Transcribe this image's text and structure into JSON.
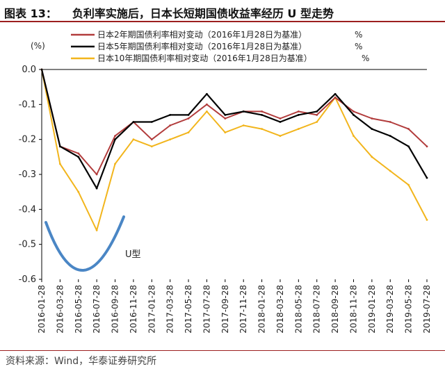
{
  "header": {
    "figure_label": "图表 13：",
    "title": "负利率实施后，日本长短期国债收益率经历 U 型走势"
  },
  "source": "资料来源：Wind，华泰证券研究所",
  "chart_data": {
    "type": "line",
    "unit_label": "(%)",
    "x": [
      "2016-01-28",
      "2016-03-28",
      "2016-05-28",
      "2016-07-28",
      "2016-09-28",
      "2016-11-28",
      "2017-01-28",
      "2017-03-28",
      "2017-05-28",
      "2017-07-28",
      "2017-09-28",
      "2017-11-28",
      "2018-01-28",
      "2018-03-28",
      "2018-05-28",
      "2018-07-28",
      "2018-09-28",
      "2018-11-28",
      "2019-01-28",
      "2019-03-28",
      "2019-05-28",
      "2019-07-28"
    ],
    "ylim": [
      -0.6,
      0.0
    ],
    "yticks": [
      0.0,
      -0.1,
      -0.2,
      -0.3,
      -0.4,
      -0.5,
      -0.6
    ],
    "ytick_labels": [
      "0.0",
      "-0.1",
      "-0.2",
      "-0.3",
      "-0.4",
      "-0.5",
      "-0.6"
    ],
    "series": [
      {
        "name": "日本2年期国债利率相对变动（2016年1月28日为基准）",
        "color": "#b23c3c",
        "values": [
          0.0,
          -0.22,
          -0.24,
          -0.3,
          -0.19,
          -0.15,
          -0.2,
          -0.16,
          -0.14,
          -0.1,
          -0.14,
          -0.12,
          -0.12,
          -0.14,
          -0.12,
          -0.13,
          -0.08,
          -0.12,
          -0.14,
          -0.15,
          -0.17,
          -0.22
        ]
      },
      {
        "name": "日本5年期国债利率相对变动（2016年1月28日为基准）",
        "color": "#000000",
        "values": [
          0.0,
          -0.22,
          -0.25,
          -0.34,
          -0.2,
          -0.15,
          -0.15,
          -0.13,
          -0.13,
          -0.07,
          -0.13,
          -0.12,
          -0.13,
          -0.15,
          -0.13,
          -0.12,
          -0.07,
          -0.13,
          -0.17,
          -0.19,
          -0.22,
          -0.31
        ]
      },
      {
        "name": "日本10年期国债利率相对变动（2016年1月28日为基准）",
        "color": "#f2b51c",
        "values": [
          0.0,
          -0.27,
          -0.35,
          -0.46,
          -0.27,
          -0.2,
          -0.22,
          -0.2,
          -0.18,
          -0.12,
          -0.18,
          -0.16,
          -0.17,
          -0.19,
          -0.17,
          -0.15,
          -0.08,
          -0.19,
          -0.25,
          -0.29,
          -0.33,
          -0.43
        ]
      }
    ],
    "legend_unit": "%",
    "annotation": "U型"
  }
}
